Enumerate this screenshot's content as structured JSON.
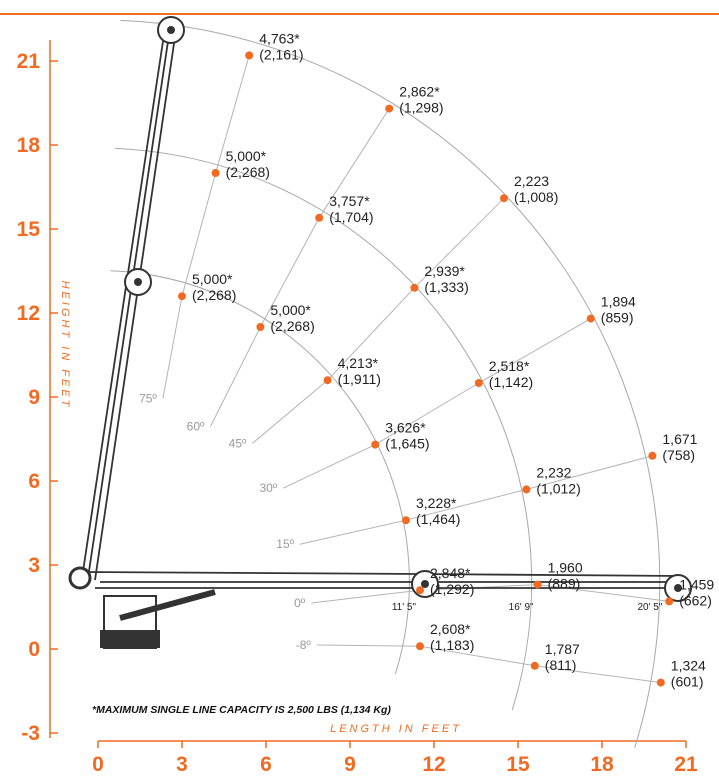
{
  "colors": {
    "accent": "#f26a21",
    "arc": "#a8a8a8",
    "radial": "#b4b4b4",
    "angle_text": "#9a9a9a",
    "crane": "#333333"
  },
  "chart_data": {
    "type": "scatter",
    "xlabel": "LENGTH IN FEET",
    "ylabel": "HEIGHT IN FEET",
    "xticks": [
      0,
      3,
      6,
      9,
      12,
      15,
      18,
      21
    ],
    "yticks": [
      -3,
      0,
      3,
      6,
      9,
      12,
      15,
      18,
      21
    ],
    "xlim": [
      0,
      21
    ],
    "ylim": [
      -3,
      21
    ],
    "footnote": "*MAXIMUM SINGLE LINE CAPACITY IS 2,500 LBS (1,134 Kg)",
    "pivot": [
      0,
      2.4
    ],
    "radii": [
      {
        "boom": "boom-1",
        "label": "11' 5\"",
        "end_x": 11.5
      },
      {
        "boom": "boom-2",
        "label": "16' 9\"",
        "end_x": 15.7
      },
      {
        "boom": "boom-3",
        "label": "20' 5\"",
        "end_x": 20.3
      }
    ],
    "angles": [
      {
        "label": "75º",
        "x": 2.1,
        "y": 8.8
      },
      {
        "label": "60º",
        "x": 3.8,
        "y": 7.8
      },
      {
        "label": "45º",
        "x": 5.3,
        "y": 7.2
      },
      {
        "label": "30º",
        "x": 6.4,
        "y": 5.6
      },
      {
        "label": "15º",
        "x": 7.0,
        "y": 3.6
      },
      {
        "label": "0º",
        "x": 7.4,
        "y": 1.5
      },
      {
        "label": "-8º",
        "x": 7.6,
        "y": 0.0
      }
    ],
    "points": [
      {
        "x": 5.4,
        "y": 21.2,
        "lbs": "4,763*",
        "kg": "(2,161)"
      },
      {
        "x": 10.4,
        "y": 19.3,
        "lbs": "2,862*",
        "kg": "(1,298)"
      },
      {
        "x": 14.5,
        "y": 16.1,
        "lbs": "2,223",
        "kg": "(1,008)"
      },
      {
        "x": 17.6,
        "y": 11.8,
        "lbs": "1,894",
        "kg": "(859)"
      },
      {
        "x": 19.8,
        "y": 6.9,
        "lbs": "1,671",
        "kg": "(758)"
      },
      {
        "x": 20.4,
        "y": 1.7,
        "lbs": "1,459",
        "kg": "(662)"
      },
      {
        "x": 20.1,
        "y": -1.2,
        "lbs": "1,324",
        "kg": "(601)"
      },
      {
        "x": 4.2,
        "y": 17.0,
        "lbs": "5,000*",
        "kg": "(2,268)"
      },
      {
        "x": 7.9,
        "y": 15.4,
        "lbs": "3,757*",
        "kg": "(1,704)"
      },
      {
        "x": 11.3,
        "y": 12.9,
        "lbs": "2,939*",
        "kg": "(1,333)"
      },
      {
        "x": 13.6,
        "y": 9.5,
        "lbs": "2,518*",
        "kg": "(1,142)"
      },
      {
        "x": 15.3,
        "y": 5.7,
        "lbs": "2,232",
        "kg": "(1,012)"
      },
      {
        "x": 15.7,
        "y": 2.3,
        "lbs": "1,960",
        "kg": "(889)"
      },
      {
        "x": 15.6,
        "y": -0.6,
        "lbs": "1,787",
        "kg": "(811)"
      },
      {
        "x": 3.0,
        "y": 12.6,
        "lbs": "5,000*",
        "kg": "(2,268)"
      },
      {
        "x": 5.8,
        "y": 11.5,
        "lbs": "5,000*",
        "kg": "(2,268)"
      },
      {
        "x": 8.2,
        "y": 9.6,
        "lbs": "4,213*",
        "kg": "(1,911)"
      },
      {
        "x": 9.9,
        "y": 7.3,
        "lbs": "3,626*",
        "kg": "(1,645)"
      },
      {
        "x": 11.0,
        "y": 4.6,
        "lbs": "3,228*",
        "kg": "(1,464)"
      },
      {
        "x": 11.5,
        "y": 2.1,
        "lbs": "2,848*",
        "kg": "(1,292)"
      },
      {
        "x": 11.5,
        "y": 0.1,
        "lbs": "2,608*",
        "kg": "(1,183)"
      }
    ]
  }
}
